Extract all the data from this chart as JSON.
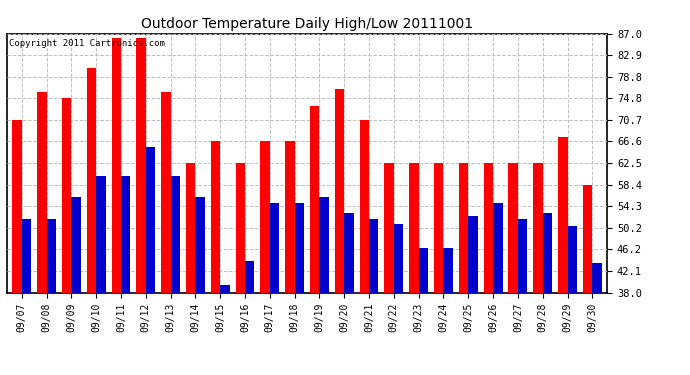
{
  "title": "Outdoor Temperature Daily High/Low 20111001",
  "copyright": "Copyright 2011 Cartronics.com",
  "dates": [
    "09/07",
    "09/08",
    "09/09",
    "09/10",
    "09/11",
    "09/12",
    "09/13",
    "09/14",
    "09/15",
    "09/16",
    "09/17",
    "09/18",
    "09/19",
    "09/20",
    "09/21",
    "09/22",
    "09/23",
    "09/24",
    "09/25",
    "09/26",
    "09/27",
    "09/28",
    "09/29",
    "09/30"
  ],
  "highs": [
    70.7,
    75.9,
    74.8,
    80.6,
    86.2,
    86.2,
    75.9,
    62.5,
    66.6,
    62.5,
    66.6,
    66.6,
    73.4,
    76.5,
    70.7,
    62.5,
    62.5,
    62.5,
    62.5,
    62.5,
    62.5,
    62.5,
    67.5,
    58.4
  ],
  "lows": [
    52.0,
    52.0,
    56.0,
    60.0,
    60.0,
    65.5,
    60.0,
    56.0,
    39.5,
    44.0,
    55.0,
    55.0,
    56.0,
    53.0,
    52.0,
    51.0,
    46.5,
    46.5,
    52.5,
    55.0,
    52.0,
    53.0,
    50.5,
    43.5
  ],
  "high_color": "#ff0000",
  "low_color": "#0000cc",
  "bg_color": "#ffffff",
  "yticks": [
    38.0,
    42.1,
    46.2,
    50.2,
    54.3,
    58.4,
    62.5,
    66.6,
    70.7,
    74.8,
    78.8,
    82.9,
    87.0
  ],
  "ymin": 38.0,
  "ymax": 87.0,
  "bar_width": 0.38,
  "figwidth": 6.9,
  "figheight": 3.75,
  "dpi": 100
}
